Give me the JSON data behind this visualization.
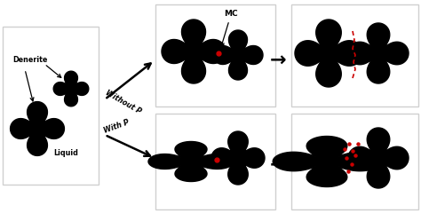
{
  "black": "#000000",
  "red": "#cc0000",
  "white": "#ffffff",
  "light_gray": "#d0d0d0",
  "label_denerite": "Denerite",
  "label_liquid": "Liquid",
  "label_mc": "MC",
  "label_without_p": "Without P",
  "label_with_p": "With P",
  "fig_w": 4.74,
  "fig_h": 2.4,
  "dpi": 100
}
